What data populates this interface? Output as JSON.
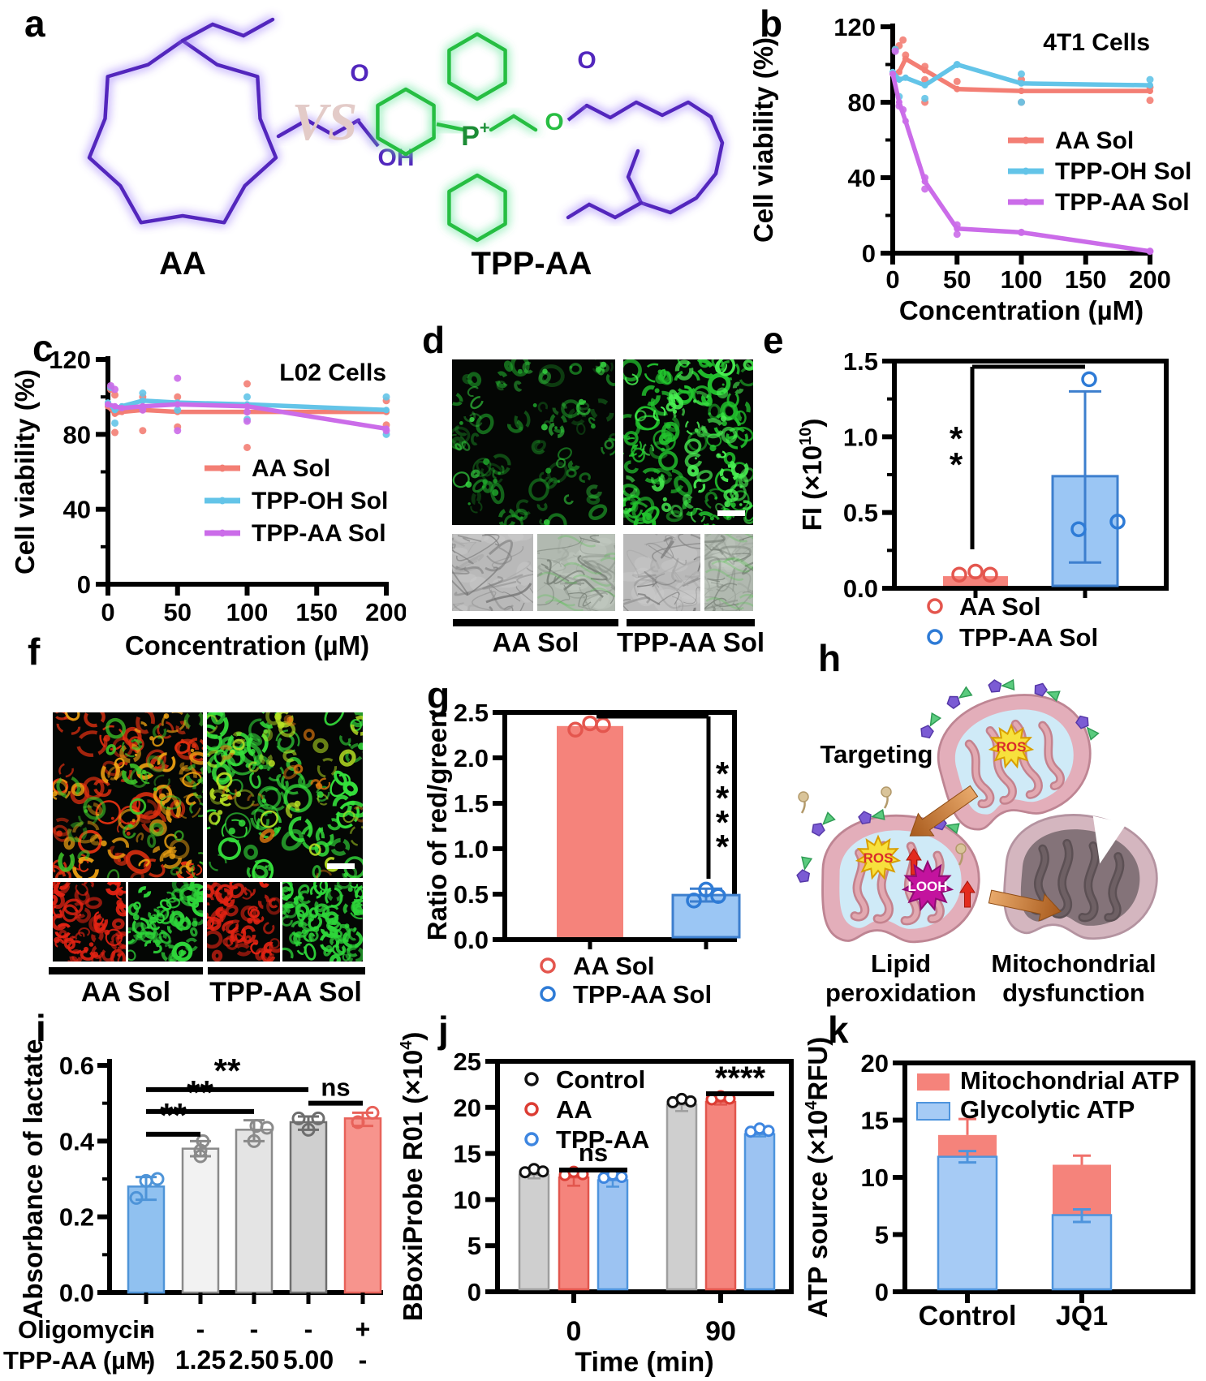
{
  "figure_labels": {
    "a": "a",
    "b": "b",
    "c": "c",
    "d": "d",
    "e": "e",
    "f": "f",
    "g": "g",
    "h": "h",
    "i": "i",
    "j": "j",
    "k": "k"
  },
  "panel_a": {
    "molecule_left": "AA",
    "molecule_right": "TPP-AA",
    "versus": "VS",
    "atoms": {
      "carbonyl_o": "O",
      "hydroxyl": "OH",
      "phosphonium": "P",
      "plus": "+",
      "ester_o": "O",
      "ester_carbonyl_o": "O"
    }
  },
  "panel_d": {
    "group_labels": [
      "AA Sol",
      "TPP-AA Sol"
    ]
  },
  "panel_f": {
    "group_labels": [
      "AA Sol",
      "TPP-AA Sol"
    ]
  },
  "panel_h": {
    "step1": "Targeting",
    "ros": "ROS",
    "looh": "LOOH",
    "step2_line1": "Lipid",
    "step2_line2": "peroxidation",
    "step3_line1": "Mitochondrial",
    "step3_line2": "dysfunction"
  },
  "chart_data": [
    {
      "id": "b",
      "type": "line",
      "title": "4T1 Cells",
      "xlabel": "Concentration (µM)",
      "ylabel": "Cell viability (%)",
      "xlim": [
        0,
        200
      ],
      "ylim": [
        0,
        120
      ],
      "x_ticks": [
        0,
        50,
        100,
        150,
        200
      ],
      "y_ticks": [
        0,
        40,
        80,
        120
      ],
      "y_minor": [
        20,
        60,
        100
      ],
      "x": [
        0,
        5,
        10,
        25,
        50,
        100,
        200
      ],
      "series": [
        {
          "name": "AA Sol",
          "color": "#F37E74",
          "values": [
            95,
            96,
            103,
            97,
            87,
            86,
            86
          ],
          "scatter": [
            [
              2,
              108
            ],
            [
              5,
              110
            ],
            [
              8,
              113
            ],
            [
              10,
              105
            ],
            [
              25,
              99
            ],
            [
              25,
              92
            ],
            [
              25,
              80
            ],
            [
              50,
              91
            ],
            [
              100,
              92
            ],
            [
              100,
              80
            ],
            [
              200,
              88
            ],
            [
              200,
              81
            ]
          ]
        },
        {
          "name": "TPP-OH Sol",
          "color": "#63C4E8",
          "values": [
            96,
            92,
            93,
            89,
            100,
            90,
            89
          ],
          "scatter": [
            [
              2,
              108
            ],
            [
              5,
              83
            ],
            [
              25,
              82
            ],
            [
              50,
              100
            ],
            [
              100,
              95
            ],
            [
              100,
              80
            ],
            [
              200,
              92
            ]
          ]
        },
        {
          "name": "TPP-AA Sol",
          "color": "#CB6CE9",
          "values": [
            95,
            80,
            70,
            38,
            13,
            11,
            1
          ],
          "scatter": [
            [
              2,
              107
            ],
            [
              5,
              78
            ],
            [
              8,
              76
            ],
            [
              25,
              40
            ],
            [
              25,
              34
            ],
            [
              50,
              15
            ],
            [
              50,
              10
            ],
            [
              100,
              11
            ],
            [
              200,
              1
            ]
          ]
        }
      ]
    },
    {
      "id": "c",
      "type": "line",
      "title": "L02 Cells",
      "xlabel": "Concentration (µM)",
      "ylabel": "Cell viability (%)",
      "xlim": [
        0,
        200
      ],
      "ylim": [
        0,
        120
      ],
      "x_ticks": [
        0,
        50,
        100,
        150,
        200
      ],
      "y_ticks": [
        0,
        40,
        80,
        120
      ],
      "y_minor": [
        20,
        60,
        100
      ],
      "x": [
        0,
        5,
        10,
        25,
        50,
        100,
        200
      ],
      "series": [
        {
          "name": "AA Sol",
          "color": "#F37E74",
          "values": [
            95,
            91,
            92,
            93,
            92,
            92,
            92
          ],
          "scatter": [
            [
              2,
              104
            ],
            [
              5,
              101
            ],
            [
              5,
              81
            ],
            [
              25,
              100
            ],
            [
              25,
              82
            ],
            [
              50,
              100
            ],
            [
              50,
              84
            ],
            [
              100,
              107
            ],
            [
              100,
              73
            ],
            [
              200,
              98
            ],
            [
              200,
              85
            ]
          ]
        },
        {
          "name": "TPP-OH Sol",
          "color": "#63C4E8",
          "values": [
            97,
            93,
            95,
            98,
            97,
            96,
            93
          ],
          "scatter": [
            [
              2,
              105
            ],
            [
              5,
              86
            ],
            [
              25,
              102
            ],
            [
              50,
              93
            ],
            [
              100,
              100
            ],
            [
              100,
              88
            ],
            [
              200,
              100
            ],
            [
              200,
              80
            ]
          ]
        },
        {
          "name": "TPP-AA Sol",
          "color": "#CB6CE9",
          "values": [
            96,
            95,
            94,
            95,
            96,
            95,
            83
          ],
          "scatter": [
            [
              2,
              106
            ],
            [
              5,
              104
            ],
            [
              25,
              93
            ],
            [
              50,
              110
            ],
            [
              50,
              82
            ],
            [
              100,
              92
            ],
            [
              100,
              87
            ],
            [
              200,
              82
            ]
          ]
        }
      ]
    },
    {
      "id": "e",
      "type": "bar",
      "ylabel": "FI (×10^10^)",
      "ylim": [
        0,
        1.5
      ],
      "y_ticks": [
        0,
        0.5,
        1,
        1.5
      ],
      "y_tick_labels": [
        "0.0",
        "0.5",
        "1.0",
        "1.5"
      ],
      "y_minor": [
        0.25,
        0.75,
        1.25
      ],
      "sig": "**",
      "bars": [
        {
          "name": "AA Sol",
          "value": 0.08,
          "fill": "#F5837B",
          "point_color": "#E4564E",
          "points": [
            [
              -20,
              0.09
            ],
            [
              0,
              0.11
            ],
            [
              18,
              0.09
            ]
          ]
        },
        {
          "name": "TPP-AA Sol",
          "value": 0.74,
          "fill": "#9BC6F4",
          "stroke": "#3D7FCE",
          "err": [
            0.17,
            1.3
          ],
          "point_color": "#2E7BD6",
          "points": [
            [
              -8,
              0.39
            ],
            [
              40,
              0.44
            ],
            [
              5,
              1.38
            ]
          ]
        }
      ]
    },
    {
      "id": "g",
      "type": "bar",
      "ylabel": "Ratio of red/green",
      "ylim": [
        0,
        2.5
      ],
      "y_ticks": [
        0,
        0.5,
        1,
        1.5,
        2,
        2.5
      ],
      "y_tick_labels": [
        "0.0",
        "0.5",
        "1.0",
        "1.5",
        "2.0",
        "2.5"
      ],
      "sig": "****",
      "bars": [
        {
          "name": "AA Sol",
          "value": 2.35,
          "fill": "#F5837B",
          "point_color": "#E4564E",
          "points": [
            [
              -18,
              2.31
            ],
            [
              0,
              2.38
            ],
            [
              16,
              2.36
            ]
          ]
        },
        {
          "name": "TPP-AA Sol",
          "value": 0.49,
          "fill": "#9BC6F4",
          "stroke": "#3D7FCE",
          "err": [
            0.42,
            0.56
          ],
          "point_color": "#2E7BD6",
          "points": [
            [
              -15,
              0.43
            ],
            [
              0,
              0.55
            ],
            [
              15,
              0.48
            ]
          ]
        }
      ]
    },
    {
      "id": "i",
      "type": "bar-multi",
      "ylabel": "Absorbance of lactate",
      "ylim": [
        0,
        0.6
      ],
      "y_ticks": [
        0,
        0.2,
        0.4,
        0.6
      ],
      "y_tick_labels": [
        "0.0",
        "0.2",
        "0.4",
        "0.6"
      ],
      "y_minor": [
        0.1,
        0.3,
        0.5
      ],
      "bars": [
        {
          "value": 0.28,
          "err": [
            0.245,
            0.305
          ],
          "fill": "#90C1F0",
          "stroke": "#4E94D8",
          "points": [
            [
              -12,
              0.25
            ],
            [
              0,
              0.295
            ],
            [
              14,
              0.3
            ]
          ]
        },
        {
          "value": 0.38,
          "err": [
            0.36,
            0.4
          ],
          "fill": "#F2F2F2",
          "stroke": "#8A8A8A",
          "points": [
            [
              0,
              0.36
            ],
            [
              0,
              0.375
            ],
            [
              3,
              0.4
            ]
          ]
        },
        {
          "value": 0.43,
          "err": [
            0.4,
            0.455
          ],
          "fill": "#E4E4E4",
          "stroke": "#8A8A8A",
          "points": [
            [
              0,
              0.4
            ],
            [
              3,
              0.44
            ],
            [
              16,
              0.435
            ]
          ]
        },
        {
          "value": 0.45,
          "err": [
            0.43,
            0.465
          ],
          "fill": "#CFCFCF",
          "stroke": "#6E6E6E",
          "points": [
            [
              -12,
              0.46
            ],
            [
              0,
              0.43
            ],
            [
              12,
              0.46
            ]
          ]
        },
        {
          "value": 0.46,
          "err": [
            0.44,
            0.475
          ],
          "fill": "#F7948D",
          "stroke": "#E8625A",
          "points": [
            [
              -6,
              0.45
            ],
            [
              12,
              0.475
            ]
          ]
        }
      ],
      "sig_lines": [
        {
          "from": 0,
          "to": 1,
          "y": 0.418,
          "label": "**"
        },
        {
          "from": 0,
          "to": 2,
          "y": 0.478,
          "label": "**"
        },
        {
          "from": 0,
          "to": 3,
          "y": 0.536,
          "label": "**"
        },
        {
          "from": 3,
          "to": 4,
          "y": 0.5,
          "label": "ns"
        }
      ],
      "x_rows": [
        {
          "label": "Oligomycin",
          "values": [
            "-",
            "-",
            "-",
            "-",
            "+"
          ]
        },
        {
          "label": "TPP-AA (µM)",
          "values": [
            "-",
            "1.25",
            "2.50",
            "5.00",
            "-"
          ]
        }
      ]
    },
    {
      "id": "j",
      "type": "grouped-bar",
      "ylabel": "BBoxiProbe R01 (×10^4^)",
      "xlabel": "Time (min)",
      "ylim": [
        0,
        25
      ],
      "y_ticks": [
        0,
        5,
        10,
        15,
        20,
        25
      ],
      "groups": [
        "0",
        "90"
      ],
      "series": [
        {
          "name": "Control",
          "fill": "#CFCFCF",
          "stroke": "#9E9E9E",
          "point_color": "#111111"
        },
        {
          "name": "AA",
          "fill": "#F5847C",
          "stroke": "#E2564D",
          "point_color": "#DC3C33"
        },
        {
          "name": "TPP-AA",
          "fill": "#9CC3F2",
          "stroke": "#4E94DD",
          "point_color": "#3E86E0"
        }
      ],
      "values": [
        [
          12.7,
          12.4,
          12.1
        ],
        [
          20.3,
          20.6,
          17.1
        ]
      ],
      "errors": [
        [
          0.4,
          0.9,
          0.7
        ],
        [
          0.7,
          0.3,
          0.25
        ]
      ],
      "annotations": [
        {
          "group": 0,
          "label": "ns"
        },
        {
          "group": 1,
          "label": "****"
        }
      ]
    },
    {
      "id": "k",
      "type": "stacked-bar",
      "ylabel": "ATP source (×10^4^RFU)",
      "ylim": [
        0,
        20
      ],
      "y_ticks": [
        0,
        5,
        10,
        15,
        20
      ],
      "categories": [
        "Control",
        "JQ1"
      ],
      "legend": [
        {
          "name": "Mitochondrial ATP",
          "color": "#F5837B"
        },
        {
          "name": "Glycolytic ATP",
          "color": "#A6CBF5"
        }
      ],
      "glycolytic": [
        11.8,
        6.7
      ],
      "mitochondrial": [
        1.9,
        4.4
      ],
      "glycolytic_err": [
        [
          11.3,
          12.3
        ],
        [
          6.1,
          7.2
        ]
      ],
      "total_err": [
        [
          13.0,
          15.1
        ],
        [
          10.4,
          11.9
        ]
      ]
    }
  ]
}
